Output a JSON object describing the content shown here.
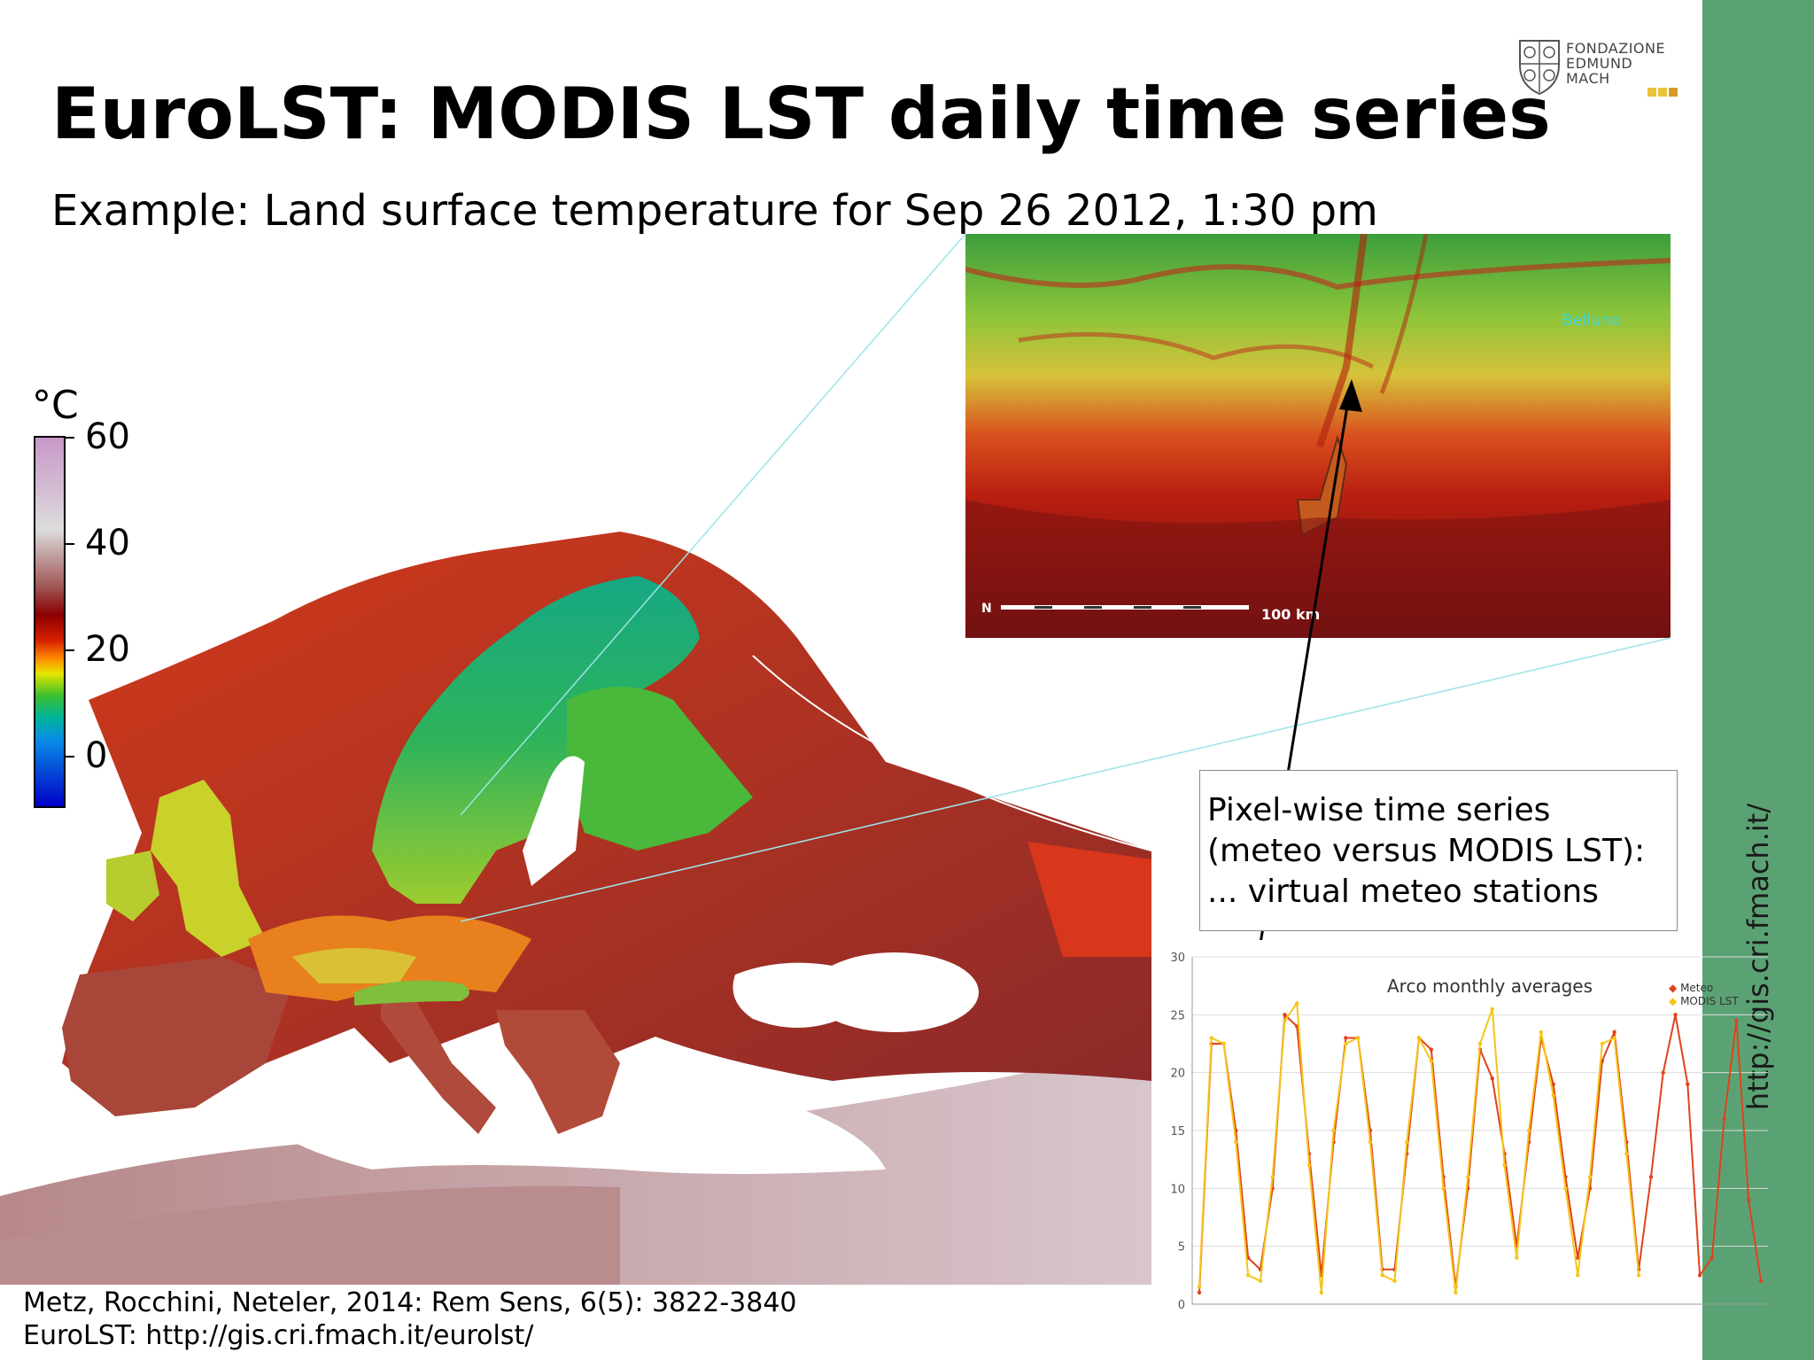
{
  "slide": {
    "title": "EuroLST: MODIS LST daily time series",
    "subtitle": "Example: Land surface temperature for Sep 26 2012, 1:30 pm",
    "side_url": "http://gis.cri.fmach.it/"
  },
  "logo": {
    "lines": [
      "FONDAZIONE",
      "EDMUND",
      "MACH"
    ],
    "accent_colors": [
      "#e8c23a",
      "#e8c23a",
      "#d39b2a"
    ]
  },
  "legend": {
    "unit": "°C",
    "ticks": [
      "60",
      "40",
      "20",
      "0"
    ],
    "colors": [
      "#c897c8",
      "#dcdcdc",
      "#a25a5a",
      "#8b0000",
      "#d62000",
      "#ff8c00",
      "#e6e600",
      "#3cbf30",
      "#00b49b",
      "#0a8ce6",
      "#0000c8"
    ]
  },
  "inset": {
    "city_label": "Belluno",
    "scale_label": "100  km"
  },
  "callout": {
    "lines": [
      "Pixel-wise time series",
      "(meteo versus MODIS LST):",
      "... virtual meteo stations"
    ]
  },
  "chart_data": {
    "type": "line",
    "title": "Arco monthly averages",
    "xlabel": "",
    "ylabel": "",
    "ylim": [
      0,
      30
    ],
    "yticks": [
      "0",
      "5",
      "10",
      "15",
      "20",
      "25",
      "30"
    ],
    "legend_position": "top-right",
    "series": [
      {
        "name": "Meteo",
        "color": "#e0421c",
        "values": [
          1,
          22.5,
          22.5,
          15,
          4,
          3,
          10,
          25,
          24,
          13,
          2.5,
          14,
          23,
          23,
          15,
          3,
          3,
          13,
          23,
          22,
          11,
          1.5,
          10,
          22,
          19.5,
          13,
          5,
          14,
          23,
          19,
          11,
          4,
          10,
          21,
          23.5,
          14,
          3,
          11,
          20,
          25,
          19,
          2.5,
          4,
          16,
          24.5,
          9,
          2
        ]
      },
      {
        "name": "MODIS LST",
        "color": "#f5c518",
        "values": [
          1.5,
          23,
          22.5,
          14,
          2.5,
          2,
          11,
          24.5,
          26,
          12,
          1,
          15,
          22.5,
          23,
          14,
          2.5,
          2,
          14,
          23,
          21,
          10,
          1,
          11,
          22.5,
          25.5,
          12,
          4,
          15,
          23.5,
          18,
          10,
          2.5,
          11,
          22.5,
          23,
          13,
          2.5
        ]
      }
    ]
  },
  "citation": {
    "line1": "Metz, Rocchini, Neteler, 2014: Rem Sens, 6(5): 3822-3840",
    "line2": "EuroLST: http://gis.cri.fmach.it/eurolst/"
  }
}
